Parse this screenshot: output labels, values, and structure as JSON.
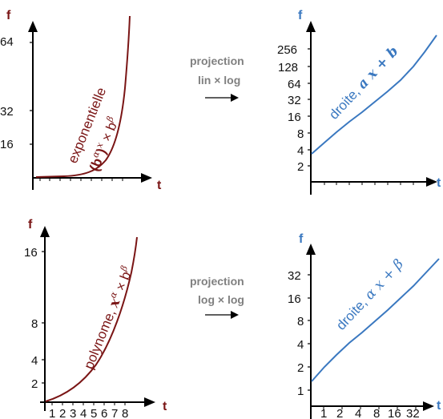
{
  "colors": {
    "red": "#7a1515",
    "blue": "#3a78c0",
    "gray": "#808080",
    "axis": "#000000"
  },
  "panels": {
    "top_left": {
      "y_label": "f",
      "x_label": "t",
      "y_ticks": [
        "64",
        "32",
        "16"
      ],
      "curve_label_1": "exponentielle",
      "curve_label_2_pre": "(b",
      "curve_label_2_sup": "α",
      "curve_label_2_mid": ")",
      "curve_label_2_sup2": "x",
      "curve_label_2_post": " × b",
      "curve_label_2_sup3": "β"
    },
    "top_right": {
      "y_label": "f",
      "x_label": "t",
      "y_ticks": [
        "256",
        "128",
        "64",
        "32",
        "16",
        "8",
        "4",
        "2"
      ],
      "curve_label_text": "droite, ",
      "curve_label_math": "a x + b"
    },
    "bottom_left": {
      "y_label": "f",
      "x_label": "t",
      "y_ticks": [
        "16",
        "8",
        "4",
        "2"
      ],
      "x_ticks": [
        "1",
        "2",
        "3",
        "4",
        "5",
        "6",
        "7",
        "8"
      ],
      "curve_label_text": "polynome, ",
      "curve_label_x": "x",
      "curve_label_alpha": "α",
      "curve_label_times": " × b",
      "curve_label_beta": "β"
    },
    "bottom_right": {
      "y_label": "f",
      "x_label": "t",
      "y_ticks": [
        "32",
        "16",
        "8",
        "4",
        "2",
        "1"
      ],
      "x_ticks": [
        "1",
        "2",
        "4",
        "8",
        "16",
        "32"
      ],
      "curve_label_text": "droite, ",
      "curve_label_math": "α x + β"
    }
  },
  "projections": {
    "top": {
      "line1": "projection",
      "line2": "lin × log"
    },
    "bottom": {
      "line1": "projection",
      "line2": "log × log"
    }
  }
}
